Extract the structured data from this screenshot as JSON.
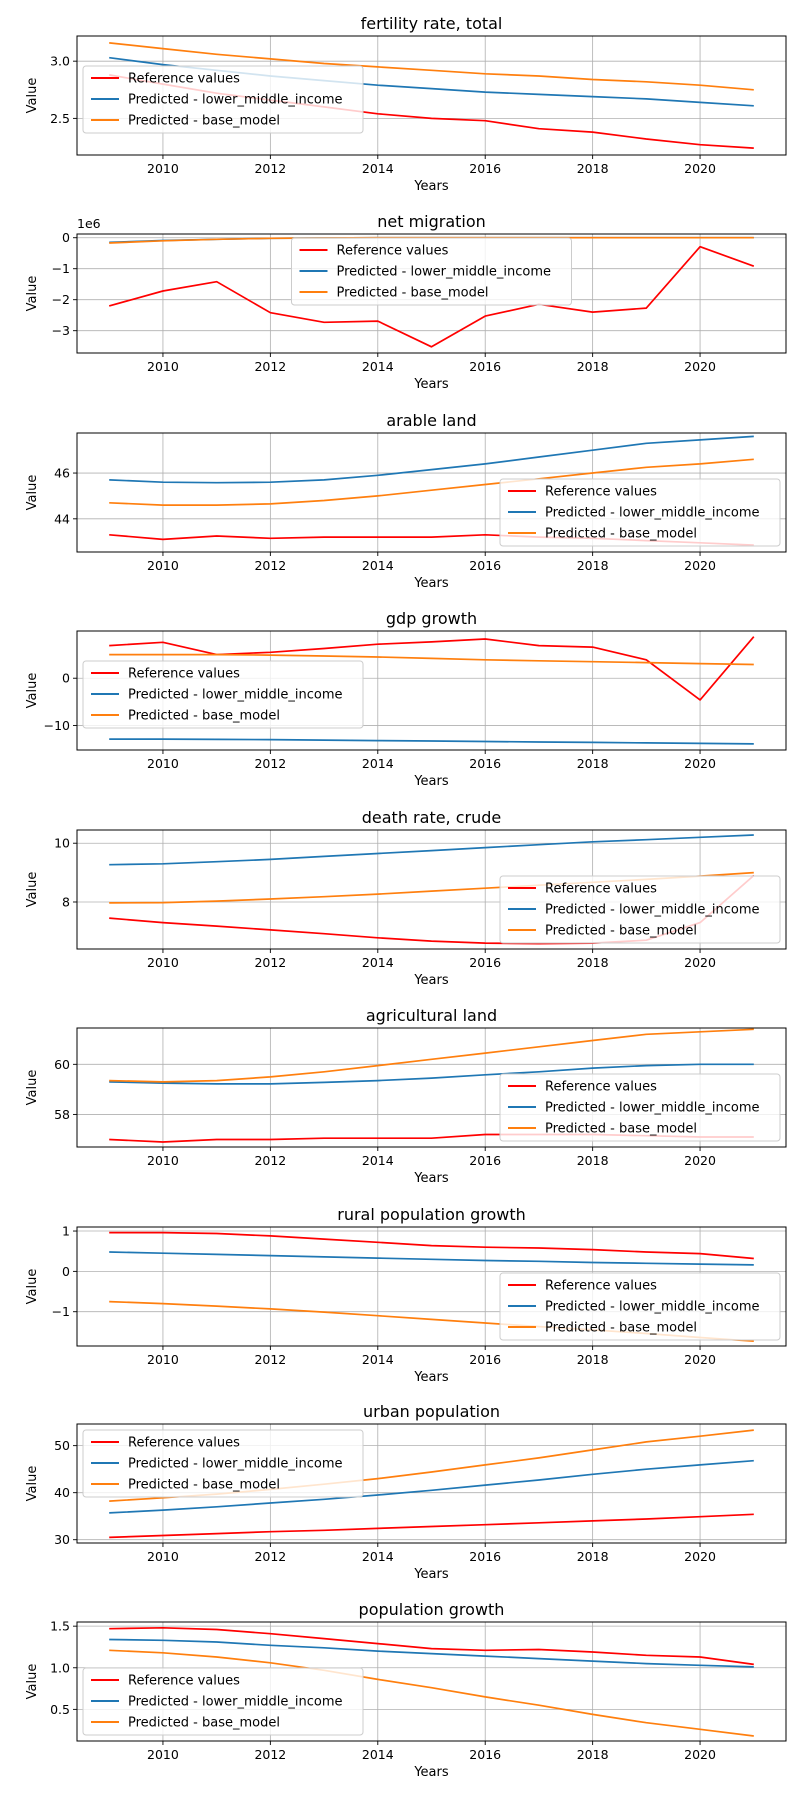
{
  "legend_colors": {
    "Reference values": "#ff0000",
    "Predicted - lower_middle_income": "#1f77b4",
    "Predicted - base_model": "#ff7f0e"
  },
  "chart_data": [
    {
      "type": "line",
      "title": "fertility rate, total",
      "xlabel": "Years",
      "ylabel": "Value",
      "x": [
        2009,
        2010,
        2011,
        2012,
        2013,
        2014,
        2015,
        2016,
        2017,
        2018,
        2019,
        2020,
        2021
      ],
      "xlim": [
        2008.4,
        2021.6
      ],
      "ylim": [
        2.18,
        3.22
      ],
      "yticks": [
        2.5,
        3.0
      ],
      "ytick_labels": [
        "2.5",
        "3.0"
      ],
      "xticks": [
        2010,
        2012,
        2014,
        2016,
        2018,
        2020
      ],
      "grid": true,
      "legend_position": "center-left",
      "series": [
        {
          "name": "Reference values",
          "color": "#ff0000",
          "values": [
            2.88,
            2.8,
            2.72,
            2.66,
            2.6,
            2.54,
            2.5,
            2.48,
            2.41,
            2.38,
            2.32,
            2.27,
            2.24
          ]
        },
        {
          "name": "Predicted - lower_middle_income",
          "color": "#1f77b4",
          "values": [
            3.03,
            2.97,
            2.92,
            2.87,
            2.83,
            2.79,
            2.76,
            2.73,
            2.71,
            2.69,
            2.67,
            2.64,
            2.61
          ]
        },
        {
          "name": "Predicted - base_model",
          "color": "#ff7f0e",
          "values": [
            3.16,
            3.11,
            3.06,
            3.02,
            2.98,
            2.95,
            2.92,
            2.89,
            2.87,
            2.84,
            2.82,
            2.79,
            2.75
          ]
        }
      ]
    },
    {
      "type": "line",
      "title": "net migration",
      "xlabel": "Years",
      "ylabel": "Value",
      "offset_text": "1e6",
      "x": [
        2009,
        2010,
        2011,
        2012,
        2013,
        2014,
        2015,
        2016,
        2017,
        2018,
        2019,
        2020,
        2021
      ],
      "xlim": [
        2008.4,
        2021.6
      ],
      "ylim": [
        -3.72,
        0.12
      ],
      "yticks": [
        -3,
        -2,
        -1,
        0
      ],
      "ytick_labels": [
        "−3",
        "−2",
        "−1",
        "0"
      ],
      "xticks": [
        2010,
        2012,
        2014,
        2016,
        2018,
        2020
      ],
      "grid": true,
      "legend_position": "upper-center",
      "series": [
        {
          "name": "Reference values",
          "color": "#ff0000",
          "values": [
            -2.2,
            -1.72,
            -1.42,
            -2.42,
            -2.73,
            -2.69,
            -3.52,
            -2.53,
            -2.15,
            -2.4,
            -2.27,
            -0.29,
            -0.92
          ]
        },
        {
          "name": "Predicted - lower_middle_income",
          "color": "#1f77b4",
          "values": [
            -0.15,
            -0.09,
            -0.05,
            -0.02,
            -0.01,
            0,
            0,
            0,
            0,
            0,
            0,
            0,
            0
          ]
        },
        {
          "name": "Predicted - base_model",
          "color": "#ff7f0e",
          "values": [
            -0.17,
            -0.1,
            -0.05,
            -0.02,
            -0.01,
            0,
            0,
            0,
            0,
            0,
            0,
            0,
            0
          ]
        }
      ]
    },
    {
      "type": "line",
      "title": "arable land",
      "xlabel": "Years",
      "ylabel": "Value",
      "x": [
        2009,
        2010,
        2011,
        2012,
        2013,
        2014,
        2015,
        2016,
        2017,
        2018,
        2019,
        2020,
        2021
      ],
      "xlim": [
        2008.4,
        2021.6
      ],
      "ylim": [
        42.55,
        47.75
      ],
      "yticks": [
        44,
        46
      ],
      "ytick_labels": [
        "44",
        "46"
      ],
      "xticks": [
        2010,
        2012,
        2014,
        2016,
        2018,
        2020
      ],
      "grid": true,
      "legend_position": "lower-right",
      "series": [
        {
          "name": "Reference values",
          "color": "#ff0000",
          "values": [
            43.3,
            43.1,
            43.25,
            43.15,
            43.2,
            43.2,
            43.2,
            43.3,
            43.2,
            43.15,
            43.05,
            42.95,
            42.85
          ]
        },
        {
          "name": "Predicted - lower_middle_income",
          "color": "#1f77b4",
          "values": [
            45.7,
            45.6,
            45.58,
            45.6,
            45.7,
            45.9,
            46.15,
            46.4,
            46.7,
            47.0,
            47.3,
            47.45,
            47.6
          ]
        },
        {
          "name": "Predicted - base_model",
          "color": "#ff7f0e",
          "values": [
            44.7,
            44.6,
            44.6,
            44.65,
            44.8,
            45.0,
            45.25,
            45.5,
            45.75,
            46.0,
            46.25,
            46.4,
            46.6
          ]
        }
      ]
    },
    {
      "type": "line",
      "title": "gdp growth",
      "xlabel": "Years",
      "ylabel": "Value",
      "x": [
        2009,
        2010,
        2011,
        2012,
        2013,
        2014,
        2015,
        2016,
        2017,
        2018,
        2019,
        2020,
        2021
      ],
      "xlim": [
        2008.4,
        2021.6
      ],
      "ylim": [
        -15.2,
        10.0
      ],
      "yticks": [
        -10,
        0
      ],
      "ytick_labels": [
        "−10",
        "0"
      ],
      "xticks": [
        2010,
        2012,
        2014,
        2016,
        2018,
        2020
      ],
      "grid": true,
      "legend_position": "center-left",
      "series": [
        {
          "name": "Reference values",
          "color": "#ff0000",
          "values": [
            6.9,
            7.6,
            5.0,
            5.5,
            6.3,
            7.2,
            7.7,
            8.3,
            6.9,
            6.6,
            3.9,
            -4.6,
            8.8
          ]
        },
        {
          "name": "Predicted - lower_middle_income",
          "color": "#1f77b4",
          "values": [
            -12.9,
            -12.9,
            -12.95,
            -13.0,
            -13.1,
            -13.2,
            -13.3,
            -13.4,
            -13.5,
            -13.6,
            -13.7,
            -13.8,
            -13.9
          ]
        },
        {
          "name": "Predicted - base_model",
          "color": "#ff7f0e",
          "values": [
            5.0,
            5.0,
            5.0,
            4.9,
            4.7,
            4.5,
            4.2,
            3.9,
            3.7,
            3.5,
            3.3,
            3.1,
            2.9
          ]
        }
      ]
    },
    {
      "type": "line",
      "title": "death rate, crude",
      "xlabel": "Years",
      "ylabel": "Value",
      "x": [
        2009,
        2010,
        2011,
        2012,
        2013,
        2014,
        2015,
        2016,
        2017,
        2018,
        2019,
        2020,
        2021
      ],
      "xlim": [
        2008.4,
        2021.6
      ],
      "ylim": [
        6.4,
        10.45
      ],
      "yticks": [
        8,
        10
      ],
      "ytick_labels": [
        "8",
        "10"
      ],
      "xticks": [
        2010,
        2012,
        2014,
        2016,
        2018,
        2020
      ],
      "grid": true,
      "legend_position": "lower-right",
      "series": [
        {
          "name": "Reference values",
          "color": "#ff0000",
          "values": [
            7.45,
            7.3,
            7.18,
            7.05,
            6.92,
            6.78,
            6.67,
            6.6,
            6.58,
            6.6,
            6.7,
            7.3,
            8.9
          ]
        },
        {
          "name": "Predicted - lower_middle_income",
          "color": "#1f77b4",
          "values": [
            9.27,
            9.3,
            9.37,
            9.45,
            9.55,
            9.65,
            9.75,
            9.85,
            9.95,
            10.05,
            10.12,
            10.2,
            10.28
          ]
        },
        {
          "name": "Predicted - base_model",
          "color": "#ff7f0e",
          "values": [
            7.97,
            7.98,
            8.03,
            8.1,
            8.18,
            8.27,
            8.37,
            8.47,
            8.57,
            8.67,
            8.77,
            8.88,
            9.0
          ]
        }
      ]
    },
    {
      "type": "line",
      "title": "agricultural land",
      "xlabel": "Years",
      "ylabel": "Value",
      "x": [
        2009,
        2010,
        2011,
        2012,
        2013,
        2014,
        2015,
        2016,
        2017,
        2018,
        2019,
        2020,
        2021
      ],
      "xlim": [
        2008.4,
        2021.6
      ],
      "ylim": [
        56.7,
        61.45
      ],
      "yticks": [
        58,
        60
      ],
      "ytick_labels": [
        "58",
        "60"
      ],
      "xticks": [
        2010,
        2012,
        2014,
        2016,
        2018,
        2020
      ],
      "grid": true,
      "legend_position": "lower-right",
      "series": [
        {
          "name": "Reference values",
          "color": "#ff0000",
          "values": [
            57.0,
            56.9,
            57.0,
            57.0,
            57.05,
            57.05,
            57.05,
            57.2,
            57.2,
            57.2,
            57.15,
            57.1,
            57.1
          ]
        },
        {
          "name": "Predicted - lower_middle_income",
          "color": "#1f77b4",
          "values": [
            59.3,
            59.25,
            59.22,
            59.22,
            59.28,
            59.35,
            59.45,
            59.58,
            59.7,
            59.85,
            59.95,
            60.0,
            60.0
          ]
        },
        {
          "name": "Predicted - base_model",
          "color": "#ff7f0e",
          "values": [
            59.35,
            59.3,
            59.35,
            59.5,
            59.7,
            59.95,
            60.2,
            60.45,
            60.7,
            60.95,
            61.2,
            61.3,
            61.4
          ]
        }
      ]
    },
    {
      "type": "line",
      "title": "rural population growth",
      "xlabel": "Years",
      "ylabel": "Value",
      "x": [
        2009,
        2010,
        2011,
        2012,
        2013,
        2014,
        2015,
        2016,
        2017,
        2018,
        2019,
        2020,
        2021
      ],
      "xlim": [
        2008.4,
        2021.6
      ],
      "ylim": [
        -1.85,
        1.1
      ],
      "yticks": [
        -1,
        0,
        1
      ],
      "ytick_labels": [
        "−1",
        "0",
        "1"
      ],
      "xticks": [
        2010,
        2012,
        2014,
        2016,
        2018,
        2020
      ],
      "grid": true,
      "legend_position": "lower-right",
      "series": [
        {
          "name": "Reference values",
          "color": "#ff0000",
          "values": [
            0.96,
            0.96,
            0.94,
            0.88,
            0.8,
            0.72,
            0.64,
            0.6,
            0.58,
            0.54,
            0.48,
            0.44,
            0.32
          ]
        },
        {
          "name": "Predicted - lower_middle_income",
          "color": "#1f77b4",
          "values": [
            0.48,
            0.45,
            0.42,
            0.39,
            0.36,
            0.33,
            0.3,
            0.27,
            0.25,
            0.22,
            0.2,
            0.18,
            0.16
          ]
        },
        {
          "name": "Predicted - base_model",
          "color": "#ff7f0e",
          "values": [
            -0.75,
            -0.8,
            -0.86,
            -0.93,
            -1.01,
            -1.1,
            -1.19,
            -1.28,
            -1.37,
            -1.45,
            -1.54,
            -1.64,
            -1.73
          ]
        }
      ]
    },
    {
      "type": "line",
      "title": "urban population",
      "xlabel": "Years",
      "ylabel": "Value",
      "x": [
        2009,
        2010,
        2011,
        2012,
        2013,
        2014,
        2015,
        2016,
        2017,
        2018,
        2019,
        2020,
        2021
      ],
      "xlim": [
        2008.4,
        2021.6
      ],
      "ylim": [
        29.3,
        54.6
      ],
      "yticks": [
        30,
        40,
        50
      ],
      "ytick_labels": [
        "30",
        "40",
        "50"
      ],
      "xticks": [
        2010,
        2012,
        2014,
        2016,
        2018,
        2020
      ],
      "grid": true,
      "legend_position": "upper-left",
      "series": [
        {
          "name": "Reference values",
          "color": "#ff0000",
          "values": [
            30.5,
            30.9,
            31.3,
            31.7,
            32.0,
            32.4,
            32.8,
            33.2,
            33.6,
            34.0,
            34.4,
            34.9,
            35.4
          ]
        },
        {
          "name": "Predicted - lower_middle_income",
          "color": "#1f77b4",
          "values": [
            35.7,
            36.3,
            37.0,
            37.8,
            38.6,
            39.5,
            40.5,
            41.6,
            42.7,
            43.9,
            45.0,
            45.9,
            46.8
          ]
        },
        {
          "name": "Predicted - base_model",
          "color": "#ff7f0e",
          "values": [
            38.2,
            38.9,
            39.7,
            40.7,
            41.8,
            43.0,
            44.4,
            45.9,
            47.4,
            49.1,
            50.8,
            52.0,
            53.3
          ]
        }
      ]
    },
    {
      "type": "line",
      "title": "population growth",
      "xlabel": "Years",
      "ylabel": "Value",
      "x": [
        2009,
        2010,
        2011,
        2012,
        2013,
        2014,
        2015,
        2016,
        2017,
        2018,
        2019,
        2020,
        2021
      ],
      "xlim": [
        2008.4,
        2021.6
      ],
      "ylim": [
        0.12,
        1.55
      ],
      "yticks": [
        0.5,
        1.0,
        1.5
      ],
      "ytick_labels": [
        "0.5",
        "1.0",
        "1.5"
      ],
      "xticks": [
        2010,
        2012,
        2014,
        2016,
        2018,
        2020
      ],
      "grid": true,
      "legend_position": "lower-left",
      "series": [
        {
          "name": "Reference values",
          "color": "#ff0000",
          "values": [
            1.47,
            1.48,
            1.46,
            1.41,
            1.35,
            1.29,
            1.23,
            1.21,
            1.22,
            1.19,
            1.15,
            1.13,
            1.04
          ]
        },
        {
          "name": "Predicted - lower_middle_income",
          "color": "#1f77b4",
          "values": [
            1.34,
            1.33,
            1.31,
            1.27,
            1.24,
            1.2,
            1.17,
            1.14,
            1.11,
            1.08,
            1.05,
            1.03,
            1.01
          ]
        },
        {
          "name": "Predicted - base_model",
          "color": "#ff7f0e",
          "values": [
            1.21,
            1.18,
            1.13,
            1.06,
            0.97,
            0.86,
            0.76,
            0.65,
            0.55,
            0.44,
            0.34,
            0.26,
            0.18
          ]
        }
      ]
    }
  ]
}
